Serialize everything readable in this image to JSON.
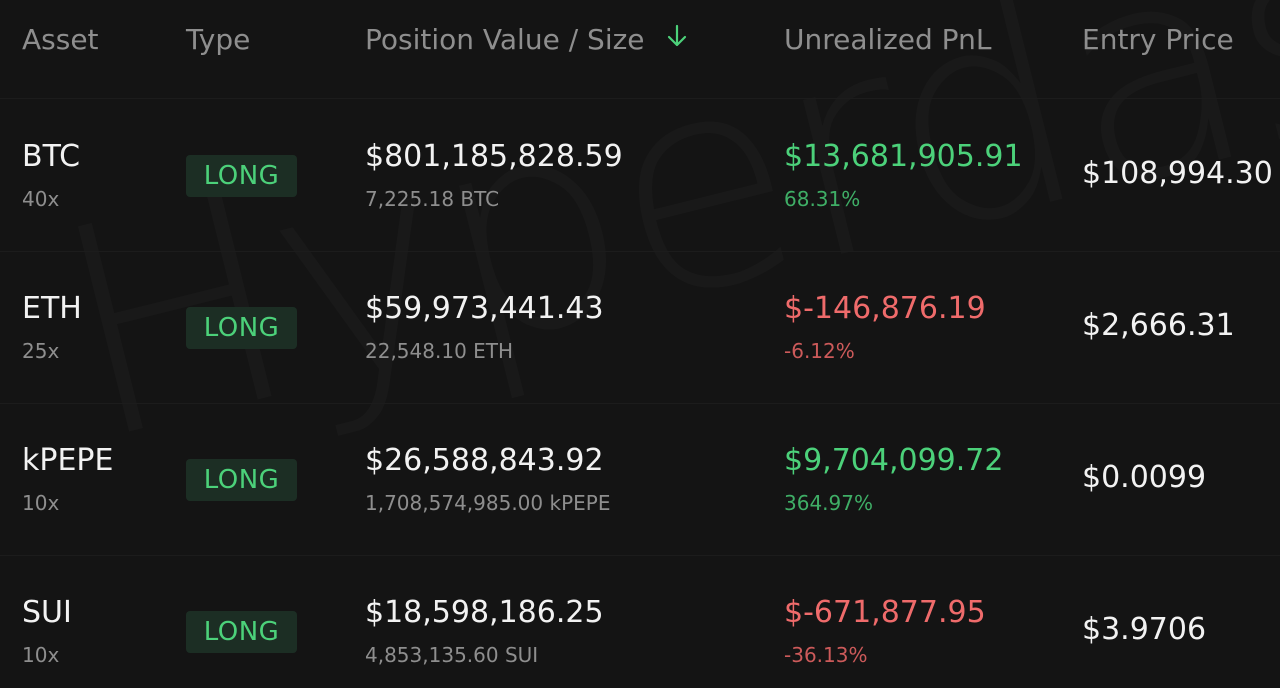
{
  "watermark": "Hyperdash",
  "columns": {
    "asset": "Asset",
    "type": "Type",
    "position": "Position Value / Size",
    "pnl": "Unrealized PnL",
    "entry": "Entry Price"
  },
  "sort": {
    "column": "position",
    "direction": "desc",
    "icon": "arrow-down-icon",
    "color": "#4cd17a"
  },
  "colors": {
    "positive": "#4cd17a",
    "negative": "#ef6b6b",
    "badge_bg": "#1c2e24",
    "background": "#141414"
  },
  "rows": [
    {
      "asset": "BTC",
      "leverage": "40x",
      "type": "LONG",
      "value": "$801,185,828.59",
      "size": "7,225.18 BTC",
      "pnl": "$13,681,905.91",
      "pnl_pct": "68.31%",
      "pnl_sign": "positive",
      "entry": "$108,994.30"
    },
    {
      "asset": "ETH",
      "leverage": "25x",
      "type": "LONG",
      "value": "$59,973,441.43",
      "size": "22,548.10 ETH",
      "pnl": "$-146,876.19",
      "pnl_pct": "-6.12%",
      "pnl_sign": "negative",
      "entry": "$2,666.31"
    },
    {
      "asset": "kPEPE",
      "leverage": "10x",
      "type": "LONG",
      "value": "$26,588,843.92",
      "size": "1,708,574,985.00 kPEPE",
      "pnl": "$9,704,099.72",
      "pnl_pct": "364.97%",
      "pnl_sign": "positive",
      "entry": "$0.0099"
    },
    {
      "asset": "SUI",
      "leverage": "10x",
      "type": "LONG",
      "value": "$18,598,186.25",
      "size": "4,853,135.60 SUI",
      "pnl": "$-671,877.95",
      "pnl_pct": "-36.13%",
      "pnl_sign": "negative",
      "entry": "$3.9706"
    }
  ]
}
